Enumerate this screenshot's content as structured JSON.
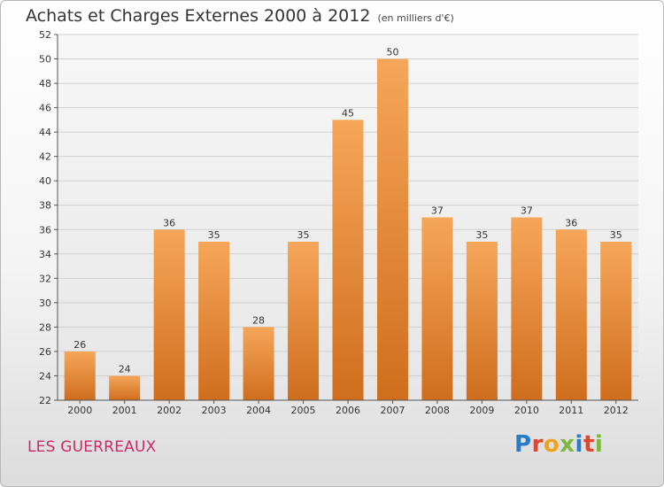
{
  "chart_data": {
    "type": "bar",
    "title": "Achats et Charges Externes 2000 à 2012",
    "subtitle": "(en milliers d'€)",
    "categories": [
      "2000",
      "2001",
      "2002",
      "2003",
      "2004",
      "2005",
      "2006",
      "2007",
      "2008",
      "2009",
      "2010",
      "2011",
      "2012"
    ],
    "values": [
      26,
      24,
      36,
      35,
      28,
      35,
      45,
      50,
      37,
      35,
      37,
      36,
      35
    ],
    "ylim": [
      22,
      52
    ],
    "yticks": [
      22,
      24,
      26,
      28,
      30,
      32,
      34,
      36,
      38,
      40,
      42,
      44,
      46,
      48,
      50,
      52
    ],
    "grid": true,
    "xlabel": "",
    "ylabel": "",
    "bar_color": "#f0903a"
  },
  "location": "LES GUERREAUX",
  "logo": "Proxiti"
}
